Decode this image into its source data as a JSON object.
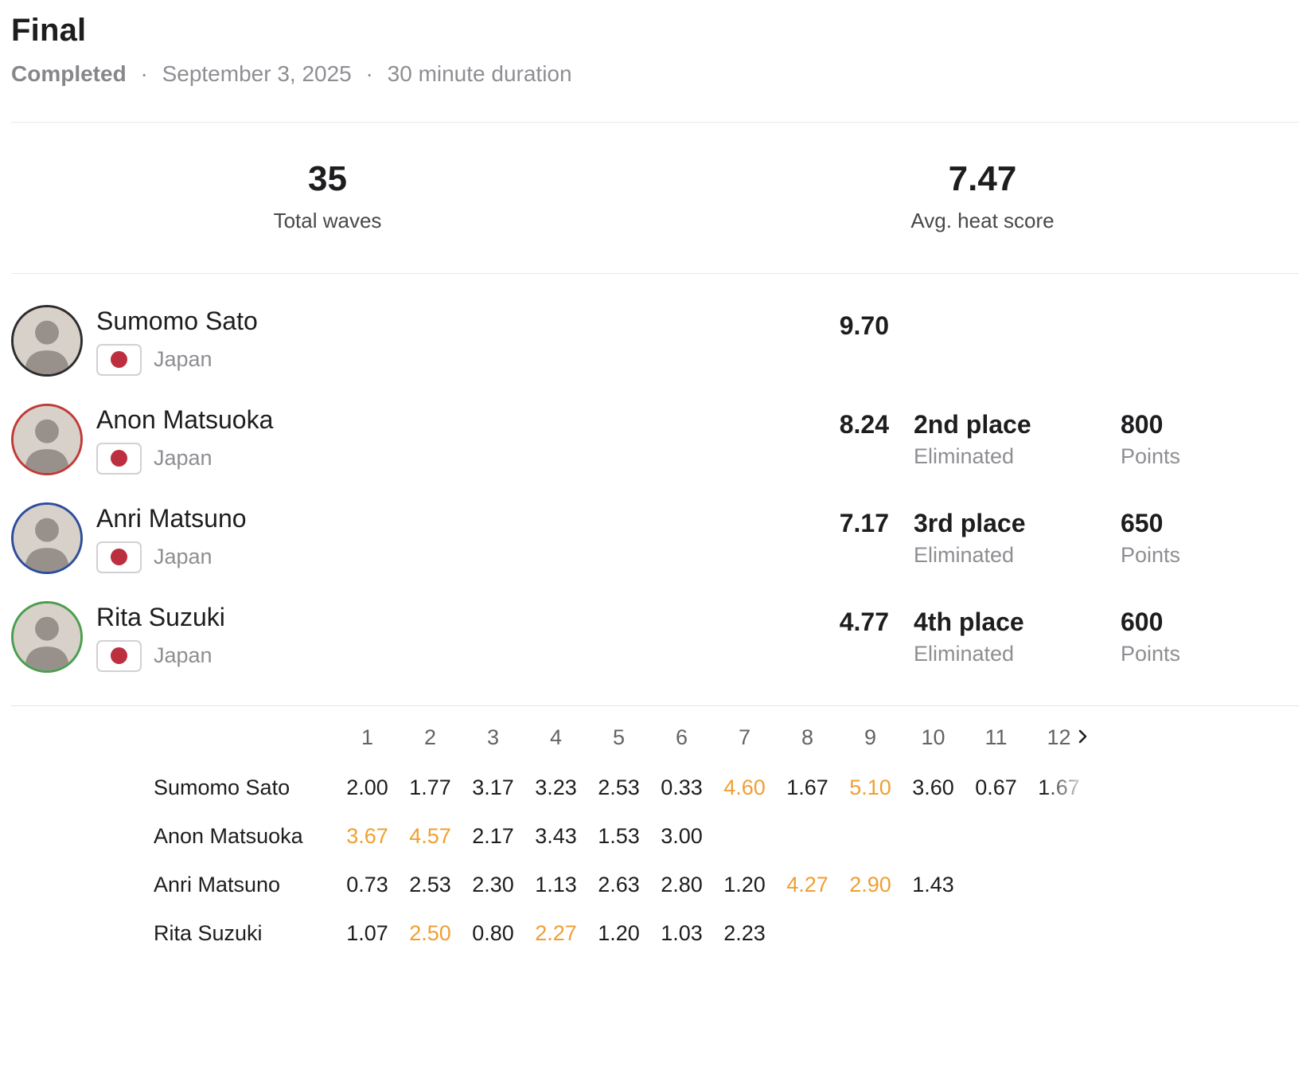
{
  "header": {
    "title": "Final",
    "status": "Completed",
    "separator": "·",
    "date": "September 3, 2025",
    "duration": "30 minute duration"
  },
  "stats": [
    {
      "value": "35",
      "label": "Total waves"
    },
    {
      "value": "7.47",
      "label": "Avg. heat score"
    }
  ],
  "athletes": [
    {
      "name": "Sumomo Sato",
      "country": "Japan",
      "score": "9.70",
      "place": "",
      "status": "",
      "points": "",
      "points_label": "",
      "jersey_color": "#2d2d2f"
    },
    {
      "name": "Anon Matsuoka",
      "country": "Japan",
      "score": "8.24",
      "place": "2nd place",
      "status": "Eliminated",
      "points": "800",
      "points_label": "Points",
      "jersey_color": "#c13a3a"
    },
    {
      "name": "Anri Matsuno",
      "country": "Japan",
      "score": "7.17",
      "place": "3rd place",
      "status": "Eliminated",
      "points": "650",
      "points_label": "Points",
      "jersey_color": "#2e4d9b"
    },
    {
      "name": "Rita Suzuki",
      "country": "Japan",
      "score": "4.77",
      "place": "4th place",
      "status": "Eliminated",
      "points": "600",
      "points_label": "Points",
      "jersey_color": "#4a9e4f"
    }
  ],
  "wave_table": {
    "columns": [
      "1",
      "2",
      "3",
      "4",
      "5",
      "6",
      "7",
      "8",
      "9",
      "10",
      "11",
      "12"
    ],
    "next_icon": "chevron-right",
    "rows": [
      {
        "name": "Sumomo Sato",
        "scores": [
          "2.00",
          "1.77",
          "3.17",
          "3.23",
          "2.53",
          "0.33",
          "4.60",
          "1.67",
          "5.10",
          "3.60",
          "0.67",
          "1.67"
        ],
        "top_wave_indices": [
          6,
          8
        ]
      },
      {
        "name": "Anon Matsuoka",
        "scores": [
          "3.67",
          "4.57",
          "2.17",
          "3.43",
          "1.53",
          "3.00"
        ],
        "top_wave_indices": [
          0,
          1
        ]
      },
      {
        "name": "Anri Matsuno",
        "scores": [
          "0.73",
          "2.53",
          "2.30",
          "1.13",
          "2.63",
          "2.80",
          "1.20",
          "4.27",
          "2.90",
          "1.43"
        ],
        "top_wave_indices": [
          7,
          8
        ]
      },
      {
        "name": "Rita Suzuki",
        "scores": [
          "1.07",
          "2.50",
          "0.80",
          "2.27",
          "1.20",
          "1.03",
          "2.23"
        ],
        "top_wave_indices": [
          1,
          3
        ]
      }
    ]
  },
  "colors": {
    "highlight": "#ef9f32",
    "flag_red": "#bc2f3f",
    "text_dark": "#1d1d1f",
    "text_gray": "#8e8e93"
  }
}
